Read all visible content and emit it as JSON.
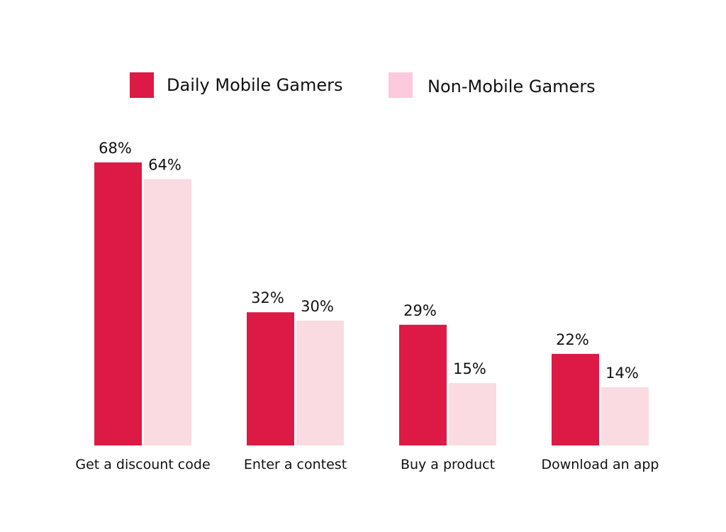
{
  "chart_data": {
    "type": "bar",
    "categories": [
      "Get a discount code",
      "Enter a contest",
      "Buy a product",
      "Download an app"
    ],
    "series": [
      {
        "name": "Daily Mobile Gamers",
        "values": [
          68,
          32,
          29,
          22
        ],
        "labels": [
          "68%",
          "32%",
          "29%",
          "22%"
        ],
        "color": "#dc1a45"
      },
      {
        "name": "Non-Mobile Gamers",
        "values": [
          64,
          30,
          15,
          14
        ],
        "labels": [
          "64%",
          "30%",
          "15%",
          "14%"
        ],
        "color": "#f9dbe1"
      }
    ],
    "legend_colors": [
      "#dc1a45",
      "#fdc9dd"
    ],
    "title": "",
    "xlabel": "",
    "ylabel": "",
    "ylim": [
      0,
      68
    ],
    "grid": false,
    "legend": "top"
  }
}
